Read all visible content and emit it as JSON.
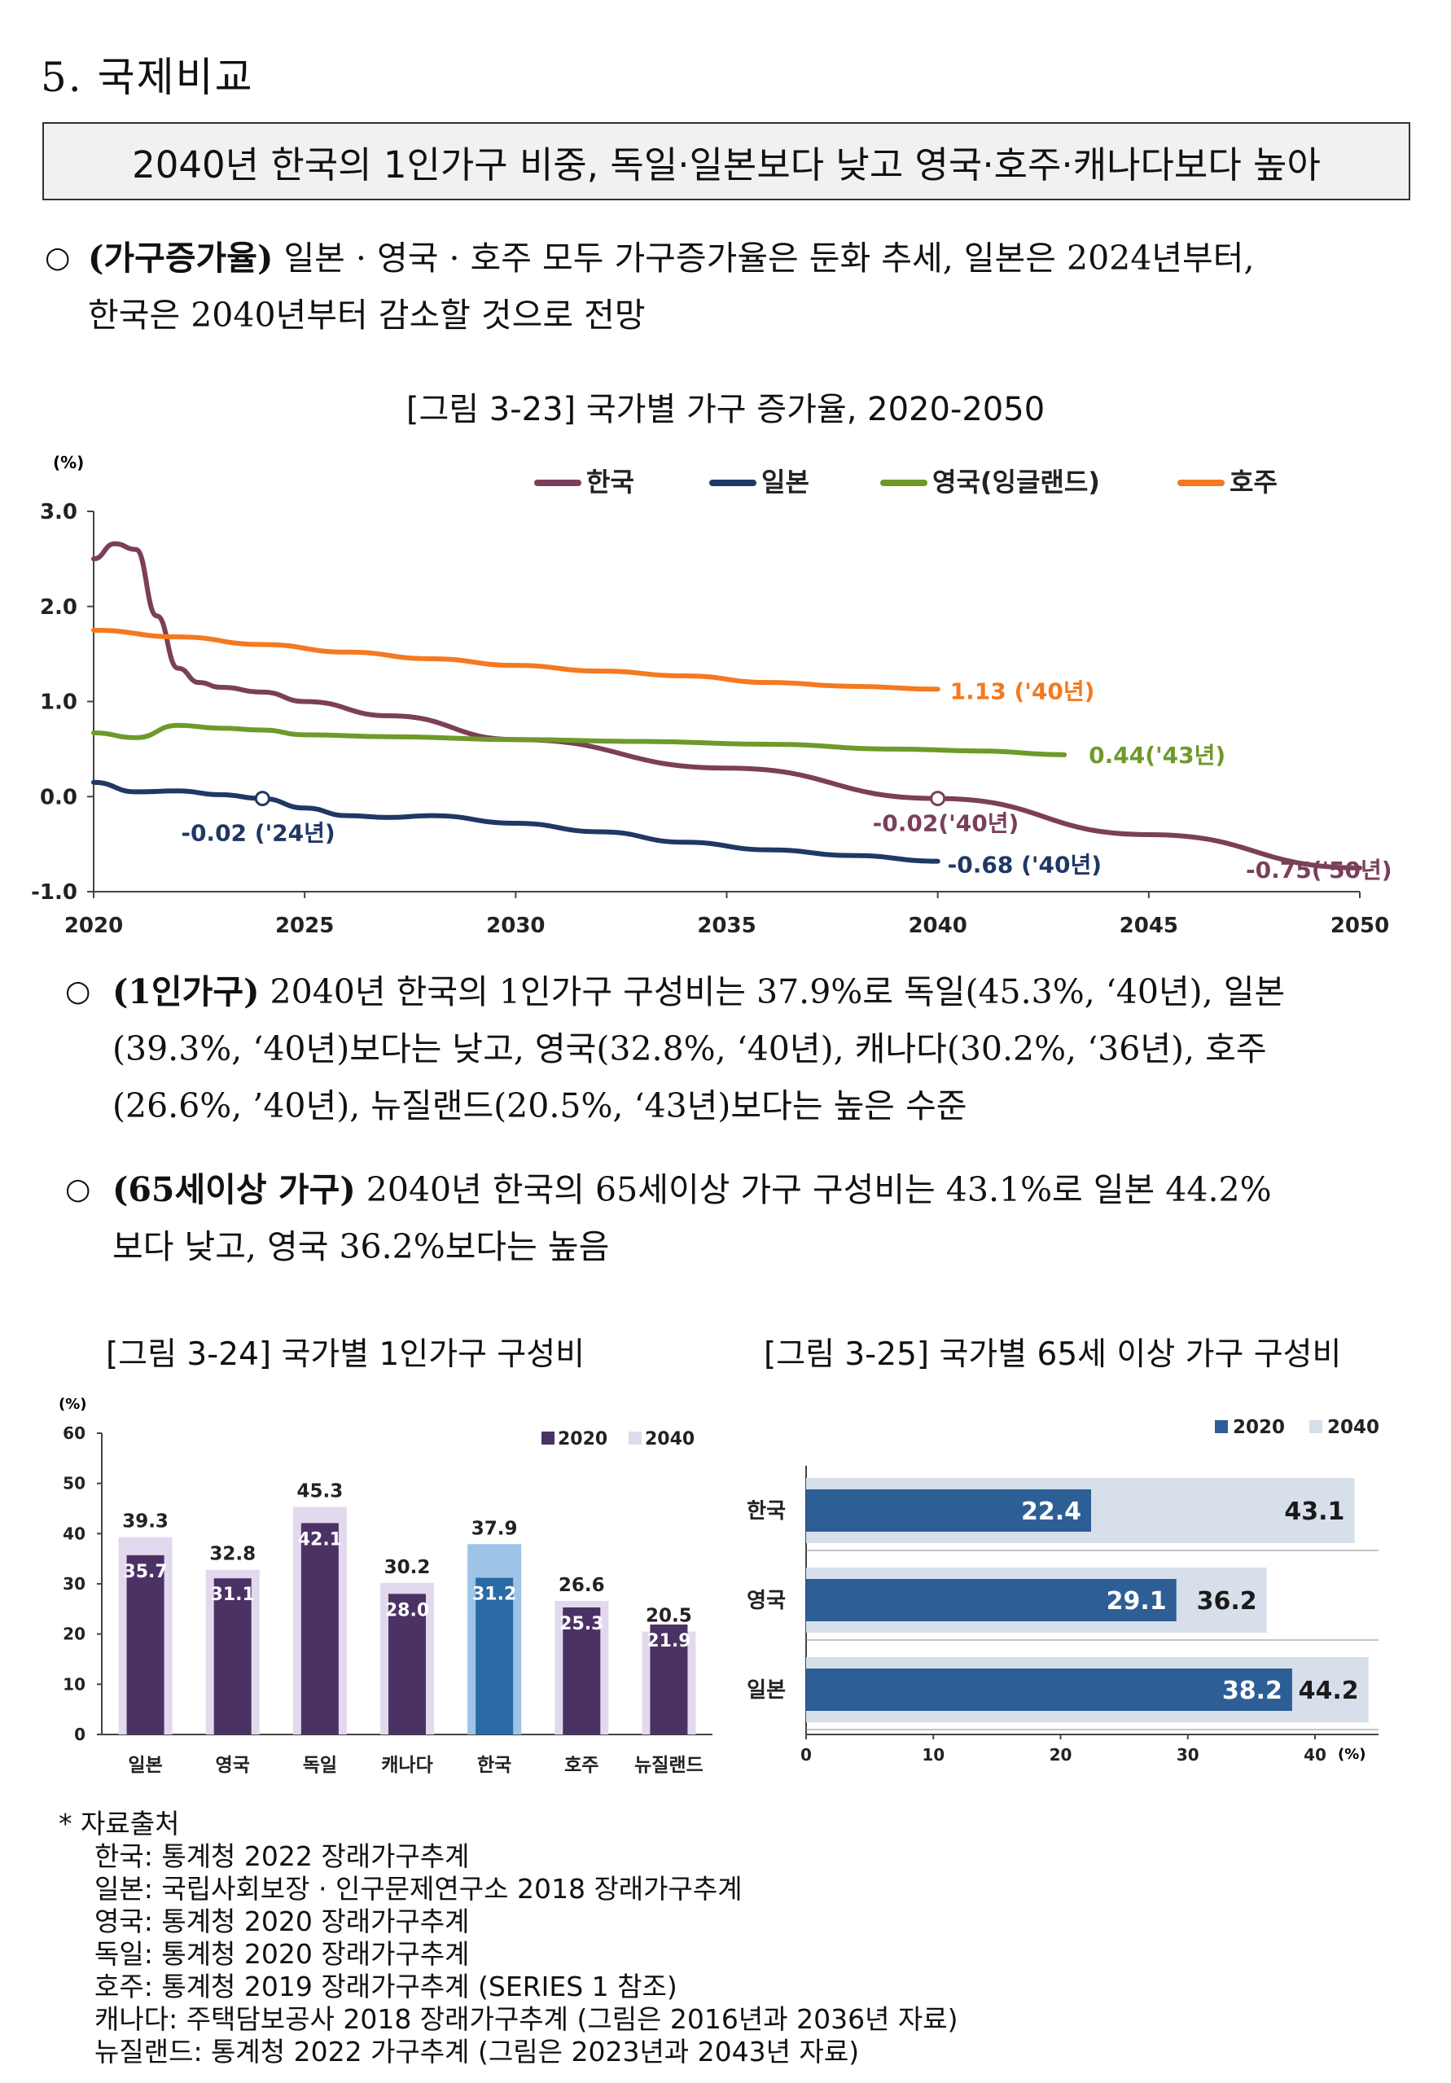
{
  "section_title": "5. 국제비교",
  "headline": "2040년 한국의 1인가구 비중, 독일·일본보다 낮고 영국·호주·캐나다보다 높아",
  "paragraphs": {
    "p1_bullet": "○",
    "p1_lead": "(가구증가율)",
    "p1_line1": " 일본 · 영국 · 호주 모두 가구증가율은 둔화 추세, 일본은 2024년부터,",
    "p1_line2": "한국은 2040년부터 감소할 것으로 전망",
    "p2_bullet": "○",
    "p2_lead": "(1인가구)",
    "p2_line1": " 2040년 한국의 1인가구 구성비는 37.9%로 독일(45.3%, ‘40년), 일본",
    "p2_line2": "(39.3%, ‘40년)보다는 낮고, 영국(32.8%, ‘40년), 캐나다(30.2%, ‘36년), 호주",
    "p2_line3": "(26.6%, ’40년), 뉴질랜드(20.5%, ‘43년)보다는 높은 수준",
    "p3_bullet": "○",
    "p3_lead": "(65세이상 가구)",
    "p3_line1": " 2040년 한국의 65세이상 가구 구성비는 43.1%로 일본 44.2%",
    "p3_line2": "보다 낮고, 영국 36.2%보다는 높음"
  },
  "figures": {
    "fig23_caption": "[그림 3-23] 국가별 가구 증가율, 2020-2050",
    "fig24_caption": "[그림 3-24] 국가별 1인가구 구성비",
    "fig25_caption": "[그림 3-25] 국가별 65세 이상 가구 구성비"
  },
  "chart_data": [
    {
      "type": "line",
      "unit_label": "(%)",
      "ylim": [
        -1.0,
        3.0
      ],
      "xlim": [
        2020,
        2050
      ],
      "yticks": [
        -1.0,
        0.0,
        1.0,
        2.0,
        3.0
      ],
      "ytick_labels": [
        "-1.0",
        "0.0",
        "1.0",
        "2.0",
        "3.0"
      ],
      "xticks": [
        2020,
        2025,
        2030,
        2035,
        2040,
        2045,
        2050
      ],
      "xtick_labels": [
        "2020",
        "2025",
        "2030",
        "2035",
        "2040",
        "2045",
        "2050"
      ],
      "legend_position": "top",
      "series": [
        {
          "name": "한국",
          "color": "#7b3f59",
          "x": [
            2020,
            2020.5,
            2021,
            2021.5,
            2022,
            2022.5,
            2023,
            2024,
            2025,
            2027,
            2030,
            2035,
            2040,
            2045,
            2050
          ],
          "y": [
            2.5,
            2.66,
            2.6,
            1.9,
            1.35,
            1.2,
            1.15,
            1.1,
            1.0,
            0.85,
            0.6,
            0.3,
            -0.02,
            -0.4,
            -0.75
          ]
        },
        {
          "name": "일본",
          "color": "#1f3864",
          "x": [
            2020,
            2021,
            2022,
            2023,
            2024,
            2025,
            2026,
            2027,
            2028,
            2030,
            2032,
            2034,
            2036,
            2038,
            2040
          ],
          "y": [
            0.15,
            0.05,
            0.06,
            0.02,
            -0.02,
            -0.12,
            -0.2,
            -0.22,
            -0.2,
            -0.28,
            -0.37,
            -0.48,
            -0.56,
            -0.62,
            -0.68
          ]
        },
        {
          "name": "영국(잉글랜드)",
          "color": "#6e9a2a",
          "x": [
            2020,
            2021,
            2022,
            2023,
            2024,
            2025,
            2027,
            2030,
            2033,
            2036,
            2039,
            2041,
            2043
          ],
          "y": [
            0.67,
            0.62,
            0.75,
            0.72,
            0.7,
            0.65,
            0.63,
            0.6,
            0.58,
            0.55,
            0.5,
            0.48,
            0.44
          ]
        },
        {
          "name": "호주",
          "color": "#f4791f",
          "x": [
            2020,
            2022,
            2024,
            2026,
            2028,
            2030,
            2032,
            2034,
            2036,
            2038,
            2040
          ],
          "y": [
            1.75,
            1.68,
            1.6,
            1.52,
            1.45,
            1.38,
            1.32,
            1.27,
            1.2,
            1.16,
            1.13
          ]
        }
      ],
      "annotations": [
        {
          "text": "1.13 ('40년)",
          "x": 2040,
          "y": 1.13,
          "color": "#f4791f"
        },
        {
          "text": "0.44('43년)",
          "x": 2043,
          "y": 0.44,
          "color": "#6e9a2a"
        },
        {
          "text": "-0.02 ('24년)",
          "x": 2024,
          "y": -0.02,
          "color": "#1f3864"
        },
        {
          "text": "-0.02('40년)",
          "x": 2040,
          "y": -0.02,
          "color": "#7b3f59"
        },
        {
          "text": "-0.68 ('40년)",
          "x": 2040,
          "y": -0.68,
          "color": "#1f3864"
        },
        {
          "text": "-0.75('50년)",
          "x": 2050,
          "y": -0.75,
          "color": "#7b3f59"
        }
      ]
    },
    {
      "type": "bar",
      "unit_label": "(%)",
      "ylim": [
        0,
        60
      ],
      "yticks": [
        0,
        10,
        20,
        30,
        40,
        50,
        60
      ],
      "ytick_labels": [
        "0",
        "10",
        "20",
        "30",
        "40",
        "50",
        "60"
      ],
      "categories": [
        "일본",
        "영국",
        "독일",
        "캐나다",
        "한국",
        "호주",
        "뉴질랜드"
      ],
      "legend_position": "top-right",
      "series": [
        {
          "name": "2020",
          "color": "#4b3265",
          "values": [
            35.7,
            31.1,
            42.1,
            28.0,
            31.2,
            25.3,
            21.9
          ]
        },
        {
          "name": "2040",
          "color": "#e3d9ee",
          "values": [
            39.3,
            32.8,
            45.3,
            30.2,
            37.9,
            26.6,
            20.5
          ]
        }
      ],
      "value_labels_2020": [
        "35.7",
        "31.1",
        "42.1",
        "28.0",
        "31.2",
        "25.3",
        "21.9"
      ],
      "value_labels_2040": [
        "39.3",
        "32.8",
        "45.3",
        "30.2",
        "37.9",
        "26.6",
        "20.5"
      ],
      "highlight_category": "한국",
      "highlight_colors": {
        "2020": "#2a6aa6",
        "2040": "#9dc3e6"
      }
    },
    {
      "type": "bar",
      "orientation": "horizontal",
      "unit_label": "(%)",
      "xlim": [
        0,
        45
      ],
      "xticks": [
        0,
        10,
        20,
        30,
        40
      ],
      "xtick_labels": [
        "0",
        "10",
        "20",
        "30",
        "40"
      ],
      "categories": [
        "한국",
        "영국",
        "일본"
      ],
      "legend_position": "top-right",
      "series": [
        {
          "name": "2020",
          "color": "#2d5f96",
          "values": [
            22.4,
            29.1,
            38.2
          ]
        },
        {
          "name": "2040",
          "color": "#d6dfea",
          "values": [
            43.1,
            36.2,
            44.2
          ]
        }
      ],
      "value_labels_2020": [
        "22.4",
        "29.1",
        "38.2"
      ],
      "value_labels_2040": [
        "43.1",
        "36.2",
        "44.2"
      ]
    }
  ],
  "sources": {
    "heading": "* 자료출처",
    "lines": [
      "한국: 통계청 2022 장래가구추계",
      "일본: 국립사회보장 · 인구문제연구소 2018 장래가구추계",
      "영국: 통계청 2020 장래가구추계",
      "독일: 통계청 2020 장래가구추계",
      "호주: 통계청 2019 장래가구추계 (SERIES 1 참조)",
      "캐나다: 주택담보공사 2018 장래가구추계 (그림은 2016년과 2036년 자료)",
      "뉴질랜드: 통계청 2022 가구추계 (그림은 2023년과 2043년 자료)"
    ]
  }
}
